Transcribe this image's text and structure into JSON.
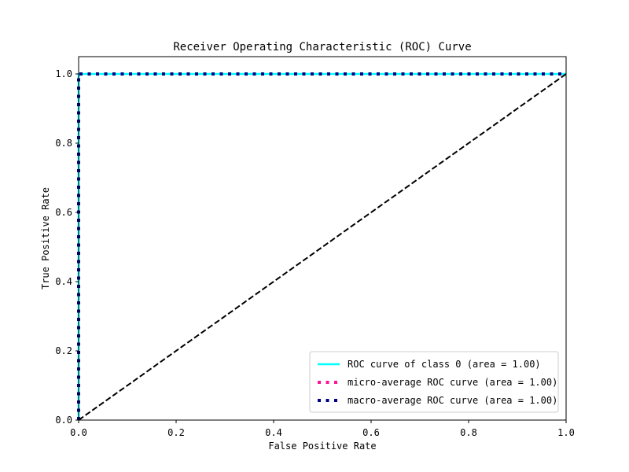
{
  "chart_data": {
    "type": "line",
    "title": "Receiver Operating Characteristic (ROC) Curve",
    "xlabel": "False Positive Rate",
    "ylabel": "True Positive Rate",
    "xlim": [
      0.0,
      1.0
    ],
    "ylim": [
      0.0,
      1.05
    ],
    "xticks": [
      "0.0",
      "0.2",
      "0.4",
      "0.6",
      "0.8",
      "1.0"
    ],
    "yticks": [
      "0.0",
      "0.2",
      "0.4",
      "0.6",
      "0.8",
      "1.0"
    ],
    "grid": false,
    "legend_position": "lower-right",
    "series": [
      {
        "name": "ROC curve of class 0 (area = 1.00)",
        "color": "#00ffff",
        "style": "solid",
        "x": [
          0.0,
          0.0,
          1.0
        ],
        "y": [
          0.0,
          1.0,
          1.0
        ]
      },
      {
        "name": "micro-average ROC curve (area = 1.00)",
        "color": "#ff1493",
        "style": "dotted",
        "x": [
          0.0,
          0.0,
          1.0
        ],
        "y": [
          0.0,
          1.0,
          1.0
        ]
      },
      {
        "name": "macro-average ROC curve (area = 1.00)",
        "color": "#000080",
        "style": "dotted",
        "x": [
          0.0,
          0.0,
          1.0
        ],
        "y": [
          0.0,
          1.0,
          1.0
        ]
      }
    ],
    "reference_line": {
      "color": "#000000",
      "style": "dashed",
      "x": [
        0.0,
        1.0
      ],
      "y": [
        0.0,
        1.0
      ]
    }
  }
}
